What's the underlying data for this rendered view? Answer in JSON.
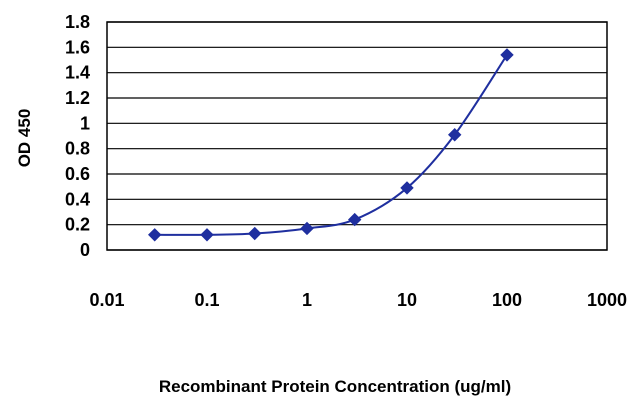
{
  "chart_data": {
    "type": "scatter",
    "xlabel": "Recombinant Protein Concentration (ug/ml)",
    "ylabel": "OD 450",
    "xscale": "log",
    "xlim": [
      0.01,
      1000
    ],
    "ylim": [
      0,
      1.8
    ],
    "xticks": [
      "0.01",
      "0.1",
      "1",
      "10",
      "100",
      "1000"
    ],
    "yticks": [
      "0",
      "0.2",
      "0.4",
      "0.6",
      "0.8",
      "1",
      "1.2",
      "1.4",
      "1.6",
      "1.8"
    ],
    "grid": "horizontal",
    "background": "#ffffff",
    "series": [
      {
        "color": "#1f2f9f",
        "marker": "diamond",
        "line": "smooth",
        "x": [
          0.03,
          0.1,
          0.3,
          1,
          3,
          10,
          30,
          100
        ],
        "y": [
          0.12,
          0.12,
          0.13,
          0.17,
          0.24,
          0.49,
          0.91,
          1.54
        ]
      }
    ]
  }
}
